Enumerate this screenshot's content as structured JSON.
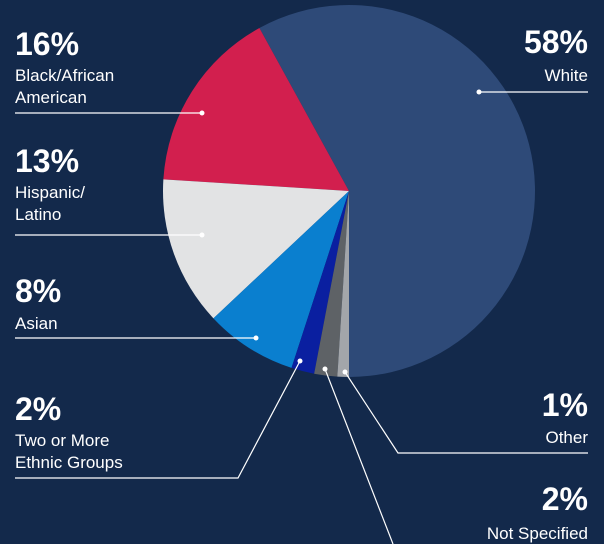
{
  "chart_data": {
    "type": "pie",
    "categories": [
      "White",
      "Black/African\nAmerican",
      "Hispanic/\nLatino",
      "Asian",
      "Two or More\nEthnic Groups",
      "Not Specified",
      "Other"
    ],
    "values": [
      58,
      16,
      13,
      8,
      2,
      2,
      1
    ],
    "value_labels": [
      "58%",
      "16%",
      "13%",
      "8%",
      "2%",
      "2%",
      "1%"
    ],
    "colors": [
      "#2e4a78",
      "#d21f4e",
      "#e2e3e4",
      "#0a7fcf",
      "#0a1fa0",
      "#5e6266",
      "#a3a6aa"
    ]
  }
}
